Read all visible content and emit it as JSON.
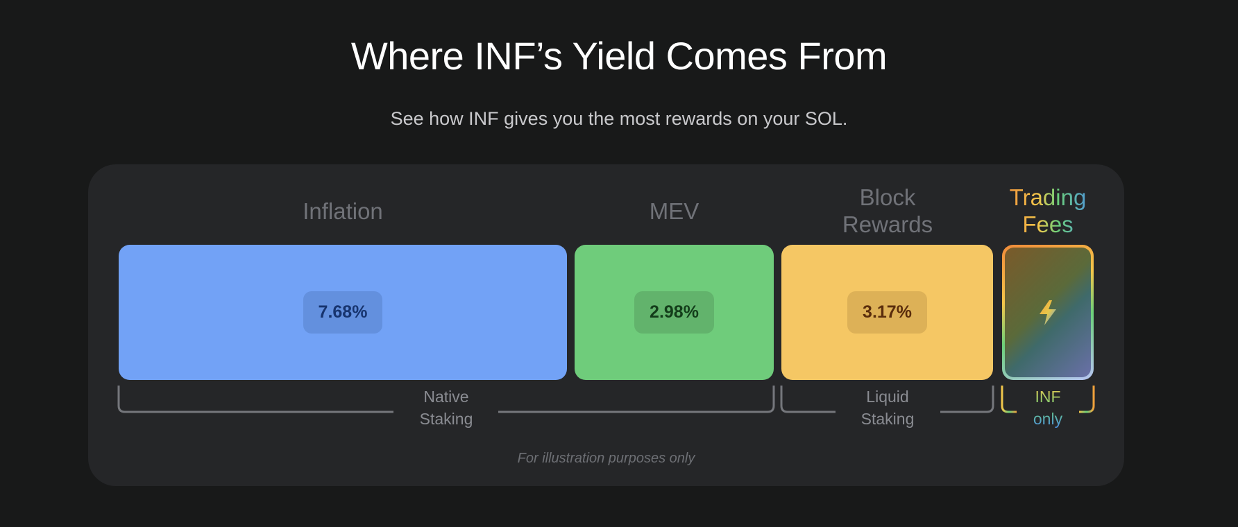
{
  "header": {
    "title": "Where INF’s Yield Comes From",
    "subtitle": "See how INF gives you the most rewards on your SOL."
  },
  "sources": [
    {
      "label": "Inflation",
      "value": "7.68%"
    },
    {
      "label": "MEV",
      "value": "2.98%"
    },
    {
      "label": "Block Rewards",
      "value": "3.17%"
    },
    {
      "label": "Trading Fees"
    }
  ],
  "groups": [
    "Native Staking",
    "Liquid Staking",
    "INF only"
  ],
  "note": "For illustration purposes only"
}
